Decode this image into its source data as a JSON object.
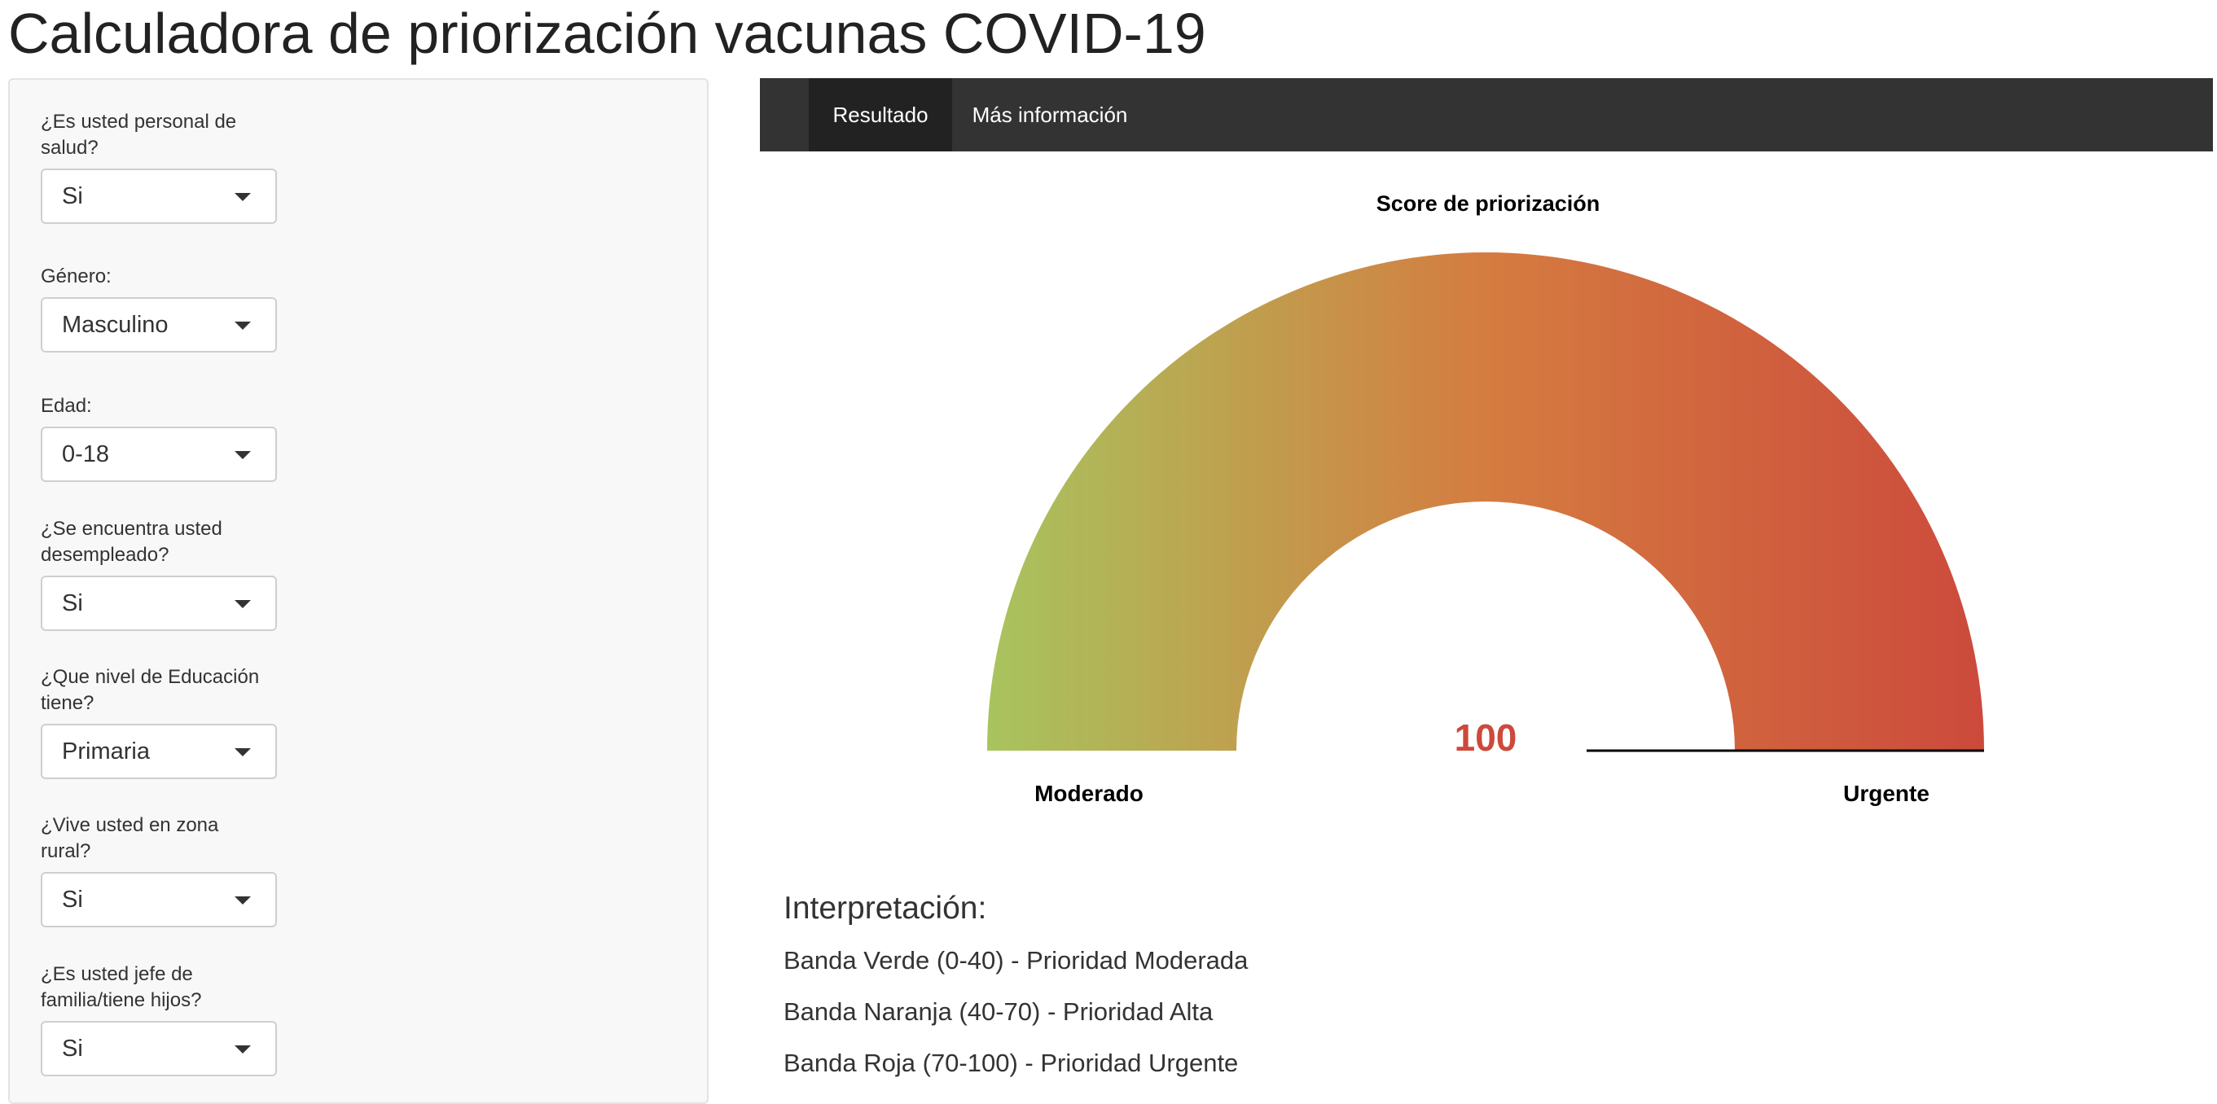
{
  "page": {
    "title": "Calculadora de priorización vacunas COVID-19"
  },
  "sidebar": {
    "fields": [
      {
        "label": "¿Es usted personal de salud?",
        "value": "Si"
      },
      {
        "label": "Género:",
        "value": "Masculino"
      },
      {
        "label": "Edad:",
        "value": "0-18"
      },
      {
        "label": "¿Se encuentra usted desempleado?",
        "value": "Si"
      },
      {
        "label": "¿Que nivel de Educación tiene?",
        "value": "Primaria"
      },
      {
        "label": "¿Vive usted en zona rural?",
        "value": "Si"
      },
      {
        "label": "¿Es usted jefe de familia/tiene hijos?",
        "value": "Si"
      }
    ]
  },
  "tabs": {
    "items": [
      {
        "label": "Resultado",
        "active": true
      },
      {
        "label": "Más información",
        "active": false
      }
    ]
  },
  "gauge": {
    "title": "Score de priorización",
    "value": "100",
    "min_label": "Moderado",
    "max_label": "Urgente",
    "min": 0,
    "max": 100,
    "colors": {
      "start": "#a8c45e",
      "middle": "#d57c40",
      "end": "#cc4a3c",
      "value_text": "#cc4a3c"
    }
  },
  "interpretation": {
    "heading": "Interpretación:",
    "lines": [
      "Banda Verde (0-40) - Prioridad Moderada",
      "Banda Naranja (40-70) - Prioridad Alta",
      "Banda Roja (70-100) - Prioridad Urgente"
    ]
  }
}
